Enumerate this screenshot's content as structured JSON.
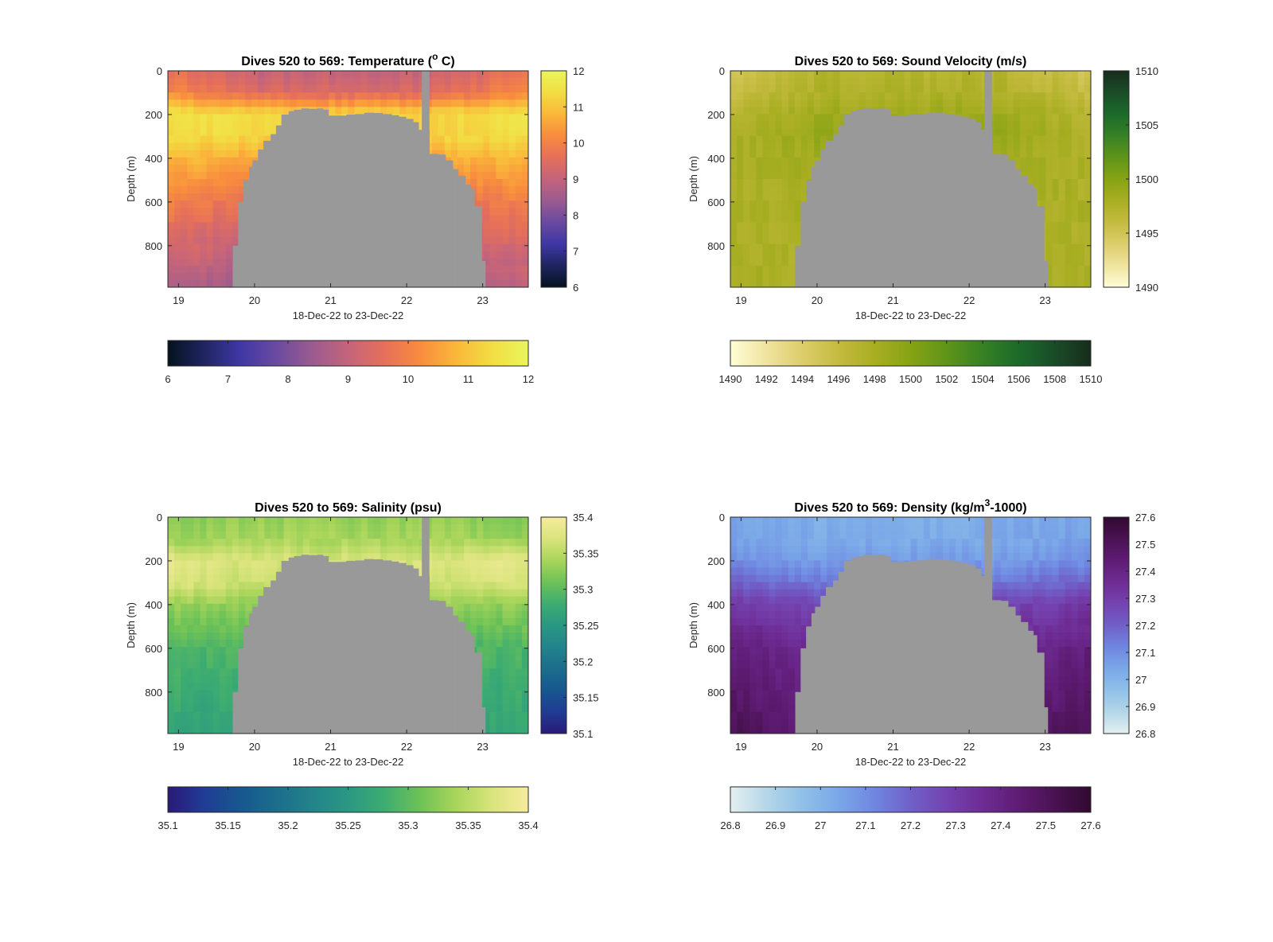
{
  "figure": {
    "background": "#ffffff",
    "no_data_color": "#999999",
    "panels": [
      {
        "id": "temperature",
        "title_main": "Dives 520 to 569: Temperature (",
        "title_sup": "o",
        "title_tail": " C)",
        "ylabel": "Depth (m)",
        "xlabel": "18-Dec-22 to 23-Dec-22",
        "colormap": [
          "#05131f",
          "#1f2560",
          "#3f37a5",
          "#6a4aa0",
          "#9a5b8f",
          "#c4647b",
          "#e56f5a",
          "#f88c3e",
          "#fab73a",
          "#f2dd43",
          "#e9f65c"
        ],
        "clim": [
          6,
          12
        ],
        "cbar_v_ticks": [
          "6",
          "7",
          "8",
          "9",
          "10",
          "11",
          "12"
        ],
        "cbar_h_ticks": [
          "6",
          "7",
          "8",
          "9",
          "10",
          "11",
          "12"
        ],
        "profile_center": [
          9.0,
          9.4,
          11.3,
          11.25,
          10.6,
          9.6,
          8.3
        ],
        "profile_edge": [
          9.8,
          10.2,
          11.6,
          11.45,
          10.9,
          10.0,
          8.8
        ]
      },
      {
        "id": "sound-velocity",
        "title_main": "Dives 520 to 569: Sound Velocity (m/s)",
        "title_sup": "",
        "title_tail": "",
        "ylabel": "Depth (m)",
        "xlabel": "18-Dec-22 to 23-Dec-22",
        "colormap": [
          "#fefdd6",
          "#efe49f",
          "#dccd6b",
          "#c4bb3f",
          "#a8ae22",
          "#86a314",
          "#5f9419",
          "#378125",
          "#1c6a2b",
          "#1a4c28",
          "#182c1c"
        ],
        "clim": [
          1490,
          1510
        ],
        "cbar_v_ticks": [
          "1490",
          "1495",
          "1500",
          "1505",
          "1510"
        ],
        "cbar_h_ticks": [
          "1490",
          "1492",
          "1494",
          "1496",
          "1498",
          "1500",
          "1502",
          "1504",
          "1506",
          "1508",
          "1510"
        ],
        "profile_center": [
          1497.0,
          1497.5,
          1498.5,
          1499.0,
          1498.4,
          1497.9,
          1497.6
        ],
        "profile_edge": [
          1495.0,
          1495.8,
          1497.0,
          1497.6,
          1497.6,
          1497.7,
          1497.8
        ]
      },
      {
        "id": "salinity",
        "title_main": "Dives 520 to 569: Salinity (psu)",
        "title_sup": "",
        "title_tail": "",
        "ylabel": "Depth (m)",
        "xlabel": "18-Dec-22 to 23-Dec-22",
        "colormap": [
          "#2a1a78",
          "#203c94",
          "#17578f",
          "#1c6d8c",
          "#23838a",
          "#2a9883",
          "#3dac71",
          "#6dc257",
          "#a9d55a",
          "#d9e47c",
          "#f6eb9d"
        ],
        "clim": [
          35.1,
          35.4
        ],
        "cbar_v_ticks": [
          "35.1",
          "35.15",
          "35.2",
          "35.25",
          "35.3",
          "35.35",
          "35.4"
        ],
        "cbar_h_ticks": [
          "35.1",
          "35.15",
          "35.2",
          "35.25",
          "35.3",
          "35.35",
          "35.4"
        ],
        "profile_center": [
          35.33,
          35.34,
          35.37,
          35.36,
          35.33,
          35.29,
          35.26
        ],
        "profile_edge": [
          35.32,
          35.33,
          35.385,
          35.375,
          35.33,
          35.29,
          35.27
        ]
      },
      {
        "id": "density",
        "title_main": "Dives 520 to 569: Density (kg/m",
        "title_sup": "3",
        "title_tail": "-1000)",
        "ylabel": "Depth (m)",
        "xlabel": "18-Dec-22 to 23-Dec-22",
        "colormap": [
          "#e4f0f0",
          "#b4d6e8",
          "#90c0e8",
          "#7aa7e8",
          "#6f86e0",
          "#7060c8",
          "#7443b0",
          "#6e2c94",
          "#5e1c74",
          "#4a1252",
          "#300a30"
        ],
        "clim": [
          26.8,
          27.6
        ],
        "cbar_v_ticks": [
          "26.8",
          "26.9",
          "27",
          "27.1",
          "27.2",
          "27.3",
          "27.4",
          "27.5",
          "27.6"
        ],
        "cbar_h_ticks": [
          "26.8",
          "26.9",
          "27",
          "27.1",
          "27.2",
          "27.3",
          "27.4",
          "27.5",
          "27.6"
        ],
        "profile_center": [
          27.02,
          27.03,
          27.07,
          27.15,
          27.27,
          27.36,
          27.44
        ],
        "profile_edge": [
          27.05,
          27.06,
          27.1,
          27.2,
          27.32,
          27.42,
          27.52
        ]
      }
    ]
  },
  "chart_data": {
    "type": "heatmap",
    "x_domain": [
      18.86,
      23.6
    ],
    "x_ticks": [
      "19",
      "20",
      "21",
      "22",
      "23"
    ],
    "x_tick_values": [
      19,
      20,
      21,
      22,
      23
    ],
    "y_domain": [
      0,
      990
    ],
    "y_ticks": [
      "0",
      "200",
      "400",
      "600",
      "800"
    ],
    "y_tick_values": [
      0,
      200,
      400,
      600,
      800
    ],
    "profile_depths": [
      0,
      100,
      200,
      300,
      400,
      600,
      990
    ],
    "seafloor_depth": [
      [
        19.65,
        990
      ],
      [
        19.72,
        800
      ],
      [
        19.78,
        600
      ],
      [
        19.85,
        500
      ],
      [
        19.92,
        440
      ],
      [
        19.98,
        410
      ],
      [
        20.05,
        360
      ],
      [
        20.12,
        320
      ],
      [
        20.2,
        290
      ],
      [
        20.28,
        250
      ],
      [
        20.36,
        200
      ],
      [
        20.44,
        185
      ],
      [
        20.52,
        178
      ],
      [
        20.62,
        172
      ],
      [
        20.72,
        174
      ],
      [
        20.82,
        172
      ],
      [
        20.9,
        178
      ],
      [
        20.98,
        205
      ],
      [
        21.1,
        205
      ],
      [
        21.2,
        200
      ],
      [
        21.32,
        198
      ],
      [
        21.44,
        192
      ],
      [
        21.56,
        193
      ],
      [
        21.68,
        198
      ],
      [
        21.8,
        203
      ],
      [
        21.9,
        210
      ],
      [
        22.0,
        220
      ],
      [
        22.08,
        235
      ],
      [
        22.16,
        270
      ]
    ],
    "seafloor_depth_right": [
      [
        22.3,
        380
      ],
      [
        22.42,
        383
      ],
      [
        22.5,
        410
      ],
      [
        22.6,
        450
      ],
      [
        22.68,
        480
      ],
      [
        22.76,
        520
      ],
      [
        22.84,
        540
      ],
      [
        22.9,
        620
      ],
      [
        22.98,
        870
      ],
      [
        23.04,
        990
      ]
    ],
    "gap_column": [
      22.2,
      22.3
    ]
  }
}
